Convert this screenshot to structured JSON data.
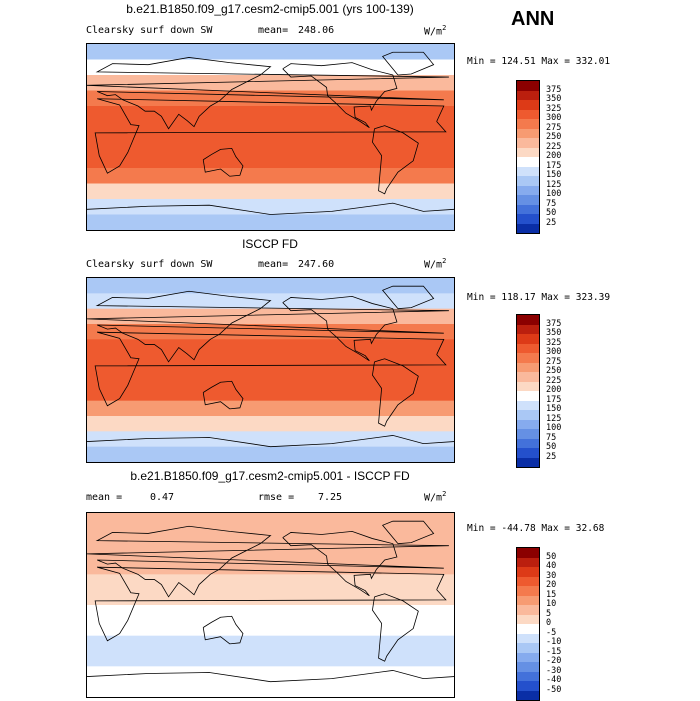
{
  "header": {
    "season": "ANN"
  },
  "panels": [
    {
      "title": "b.e21.B1850.f09_g17.cesm2-cmip5.001 (yrs 100-139)",
      "variable": "Clearsky surf down SW",
      "stat_label": "mean=",
      "stat_value": "248.06",
      "units_base": "W/m",
      "units_exp": "2",
      "min_label": "Min =",
      "min_value": "124.51",
      "max_label": "Max =",
      "max_value": "332.01"
    },
    {
      "title": "ISCCP FD",
      "variable": "Clearsky surf down SW",
      "stat_label": "mean=",
      "stat_value": "247.60",
      "units_base": "W/m",
      "units_exp": "2",
      "min_label": "Min =",
      "min_value": "118.17",
      "max_label": "Max =",
      "max_value": "323.39"
    },
    {
      "title": "b.e21.B1850.f09_g17.cesm2-cmip5.001 - ISCCP FD",
      "mean_label": "mean =",
      "mean_value": "0.47",
      "rmse_label": "rmse =",
      "rmse_value": "7.25",
      "units_base": "W/m",
      "units_exp": "2",
      "min_label": "Min =",
      "min_value": "-44.78",
      "max_label": "Max =",
      "max_value": "32.68"
    }
  ],
  "chart_data": [
    {
      "type": "heatmap",
      "title": "b.e21.B1850.f09_g17.cesm2-cmip5.001 (yrs 100-139)",
      "subtitle": "Clearsky surf down SW",
      "units": "W/m2",
      "mean": 248.06,
      "min": 124.51,
      "max": 332.01,
      "colorbar_levels": [
        375,
        350,
        325,
        300,
        275,
        250,
        225,
        200,
        175,
        150,
        125,
        100,
        75,
        50,
        25
      ],
      "colors": [
        "#8b0000",
        "#bb1f0e",
        "#dd3a17",
        "#ee5a2f",
        "#f47a4d",
        "#f79b72",
        "#fab99c",
        "#fcd9c4",
        "#ffffff",
        "#cfe1fb",
        "#aac8f5",
        "#86abee",
        "#6590e4",
        "#4371da",
        "#2450cc",
        "#0a2ea6"
      ],
      "latitude_bands": [
        {
          "lat_from": 90,
          "lat_to": 75,
          "value": 140
        },
        {
          "lat_from": 75,
          "lat_to": 60,
          "value": 175
        },
        {
          "lat_from": 60,
          "lat_to": 45,
          "value": 230
        },
        {
          "lat_from": 45,
          "lat_to": 30,
          "value": 280
        },
        {
          "lat_from": 30,
          "lat_to": -30,
          "value": 310
        },
        {
          "lat_from": -30,
          "lat_to": -45,
          "value": 275
        },
        {
          "lat_from": -45,
          "lat_to": -60,
          "value": 200
        },
        {
          "lat_from": -60,
          "lat_to": -75,
          "value": 150
        },
        {
          "lat_from": -75,
          "lat_to": -90,
          "value": 130
        }
      ]
    },
    {
      "type": "heatmap",
      "title": "ISCCP FD",
      "subtitle": "Clearsky surf down SW",
      "units": "W/m2",
      "mean": 247.6,
      "min": 118.17,
      "max": 323.39,
      "colorbar_levels": [
        375,
        350,
        325,
        300,
        275,
        250,
        225,
        200,
        175,
        150,
        125,
        100,
        75,
        50,
        25
      ],
      "colors": [
        "#8b0000",
        "#bb1f0e",
        "#dd3a17",
        "#ee5a2f",
        "#f47a4d",
        "#f79b72",
        "#fab99c",
        "#fcd9c4",
        "#ffffff",
        "#cfe1fb",
        "#aac8f5",
        "#86abee",
        "#6590e4",
        "#4371da",
        "#2450cc",
        "#0a2ea6"
      ],
      "latitude_bands": [
        {
          "lat_from": 90,
          "lat_to": 75,
          "value": 135
        },
        {
          "lat_from": 75,
          "lat_to": 60,
          "value": 170
        },
        {
          "lat_from": 60,
          "lat_to": 45,
          "value": 225
        },
        {
          "lat_from": 45,
          "lat_to": 30,
          "value": 275
        },
        {
          "lat_from": 30,
          "lat_to": -30,
          "value": 305
        },
        {
          "lat_from": -30,
          "lat_to": -45,
          "value": 270
        },
        {
          "lat_from": -45,
          "lat_to": -60,
          "value": 200
        },
        {
          "lat_from": -60,
          "lat_to": -75,
          "value": 150
        },
        {
          "lat_from": -75,
          "lat_to": -90,
          "value": 130
        }
      ]
    },
    {
      "type": "heatmap",
      "title": "b.e21.B1850.f09_g17.cesm2-cmip5.001 - ISCCP FD",
      "units": "W/m2",
      "mean": 0.47,
      "rmse": 7.25,
      "min": -44.78,
      "max": 32.68,
      "colorbar_levels": [
        50,
        40,
        30,
        20,
        15,
        10,
        5,
        0,
        -5,
        -10,
        -15,
        -20,
        -30,
        -40,
        -50
      ],
      "colors": [
        "#8b0000",
        "#bb1f0e",
        "#dd3a17",
        "#ee5a2f",
        "#f47a4d",
        "#f79b72",
        "#fab99c",
        "#fcd9c4",
        "#ffffff",
        "#cfe1fb",
        "#aac8f5",
        "#86abee",
        "#6590e4",
        "#4371da",
        "#2450cc",
        "#0a2ea6"
      ],
      "latitude_bands": [
        {
          "lat_from": 90,
          "lat_to": 60,
          "value": 6
        },
        {
          "lat_from": 60,
          "lat_to": 30,
          "value": 7
        },
        {
          "lat_from": 30,
          "lat_to": 0,
          "value": 4
        },
        {
          "lat_from": 0,
          "lat_to": -30,
          "value": -3
        },
        {
          "lat_from": -30,
          "lat_to": -60,
          "value": -6
        },
        {
          "lat_from": -60,
          "lat_to": -90,
          "value": -4
        }
      ]
    }
  ]
}
